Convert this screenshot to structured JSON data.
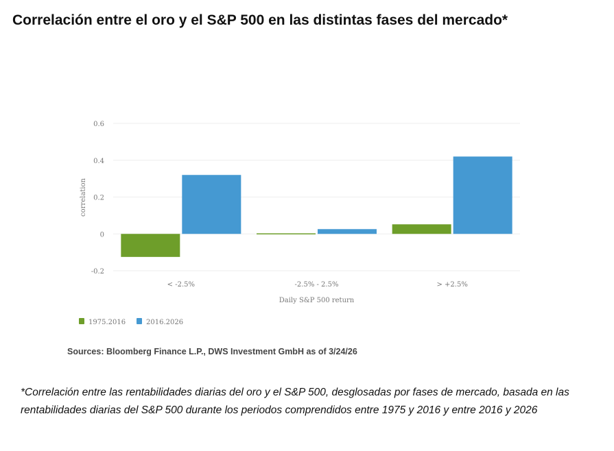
{
  "title": "Correlación entre el oro y el S&P 500 en las distintas fases del mercado*",
  "chart_data": {
    "type": "bar",
    "categories": [
      "< -2.5%",
      "-2.5% - 2.5%",
      "> +2.5%"
    ],
    "series": [
      {
        "name": "1975.2016",
        "color": "#6e9e2a",
        "values": [
          -0.125,
          0.003,
          0.052
        ]
      },
      {
        "name": "2016.2026",
        "color": "#4599d2",
        "values": [
          0.32,
          0.026,
          0.42
        ]
      }
    ],
    "xlabel": "Daily S&P 500 return",
    "ylabel": "correlation",
    "ylim": [
      -0.2,
      0.6
    ],
    "yticks": [
      {
        "v": 0.6,
        "label": "0.6"
      },
      {
        "v": 0.4,
        "label": "0.4"
      },
      {
        "v": 0.2,
        "label": "0.2"
      },
      {
        "v": 0,
        "label": "0"
      },
      {
        "v": -0.2,
        "label": "-0.2"
      }
    ],
    "grid": true,
    "legend": "bottom-left"
  },
  "source": "Sources: Bloomberg Finance L.P., DWS Investment GmbH as of 3/24/26",
  "footnote": "*Correlación entre las rentabilidades diarias del oro y el S&P 500, desglosadas por fases de mercado, basada en las rentabilidades diarias del S&P 500 durante los periodos comprendidos entre 1975 y 2016 y entre 2016 y 2026"
}
